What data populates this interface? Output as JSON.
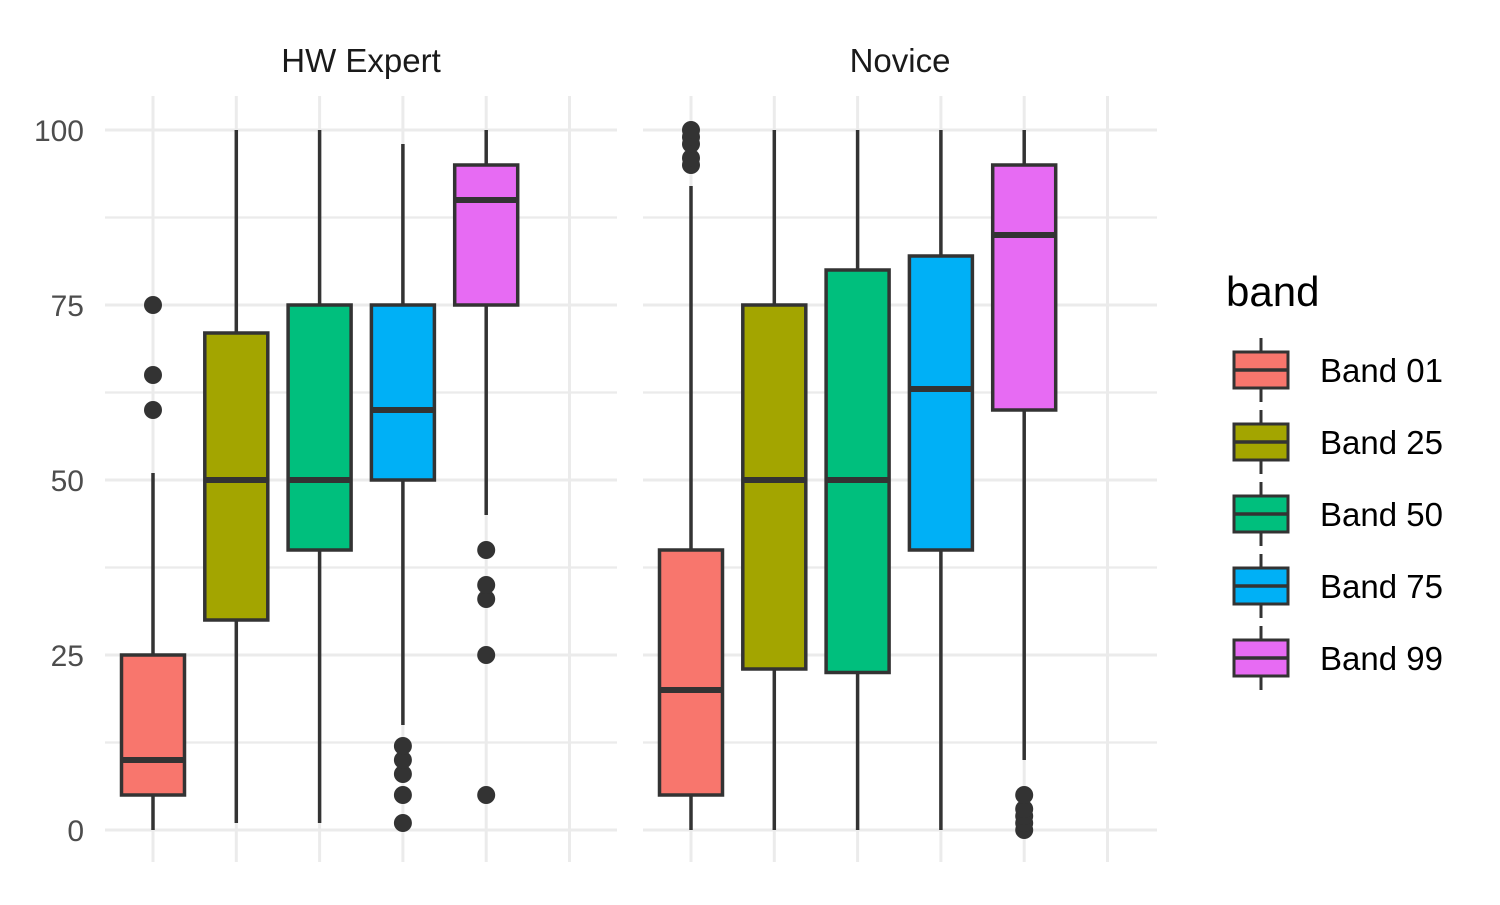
{
  "chart_data": {
    "type": "boxplot",
    "title": "",
    "xlabel": "",
    "ylabel": "",
    "ylim": [
      -5,
      105
    ],
    "yticks": [
      0,
      25,
      50,
      75,
      100
    ],
    "grid": true,
    "legend": {
      "title": "band",
      "position": "right",
      "entries": [
        {
          "label": "Band 01",
          "color": "#F8766D"
        },
        {
          "label": "Band 25",
          "color": "#A3A500"
        },
        {
          "label": "Band 50",
          "color": "#00BF7D"
        },
        {
          "label": "Band 75",
          "color": "#00B0F6"
        },
        {
          "label": "Band 99",
          "color": "#E76BF3"
        }
      ]
    },
    "panels": [
      {
        "label": "HW Expert",
        "boxes": [
          {
            "band": "Band 01",
            "whisker_low": 0,
            "q1": 5,
            "median": 10,
            "q3": 25,
            "whisker_high": 51,
            "outliers": [
              60,
              65,
              75
            ]
          },
          {
            "band": "Band 25",
            "whisker_low": 1,
            "q1": 30,
            "median": 50,
            "q3": 71,
            "whisker_high": 100,
            "outliers": []
          },
          {
            "band": "Band 50",
            "whisker_low": 1,
            "q1": 40,
            "median": 50,
            "q3": 75,
            "whisker_high": 100,
            "outliers": []
          },
          {
            "band": "Band 75",
            "whisker_low": 15,
            "q1": 50,
            "median": 60,
            "q3": 75,
            "whisker_high": 98,
            "outliers": [
              1,
              5,
              8,
              10,
              12
            ]
          },
          {
            "band": "Band 99",
            "whisker_low": 45,
            "q1": 75,
            "median": 90,
            "q3": 95,
            "whisker_high": 100,
            "outliers": [
              5,
              25,
              33,
              35,
              40
            ]
          }
        ]
      },
      {
        "label": "Novice",
        "boxes": [
          {
            "band": "Band 01",
            "whisker_low": 0,
            "q1": 5,
            "median": 20,
            "q3": 40,
            "whisker_high": 92,
            "outliers": [
              95,
              96,
              98,
              99,
              100
            ]
          },
          {
            "band": "Band 25",
            "whisker_low": 0,
            "q1": 23,
            "median": 50,
            "q3": 75,
            "whisker_high": 100,
            "outliers": []
          },
          {
            "band": "Band 50",
            "whisker_low": 0,
            "q1": 22.5,
            "median": 50,
            "q3": 80,
            "whisker_high": 100,
            "outliers": []
          },
          {
            "band": "Band 75",
            "whisker_low": 0,
            "q1": 40,
            "median": 63,
            "q3": 82,
            "whisker_high": 100,
            "outliers": []
          },
          {
            "band": "Band 99",
            "whisker_low": 10,
            "q1": 60,
            "median": 85,
            "q3": 95,
            "whisker_high": 100,
            "outliers": [
              0,
              1,
              2,
              3,
              5
            ]
          }
        ]
      }
    ]
  }
}
